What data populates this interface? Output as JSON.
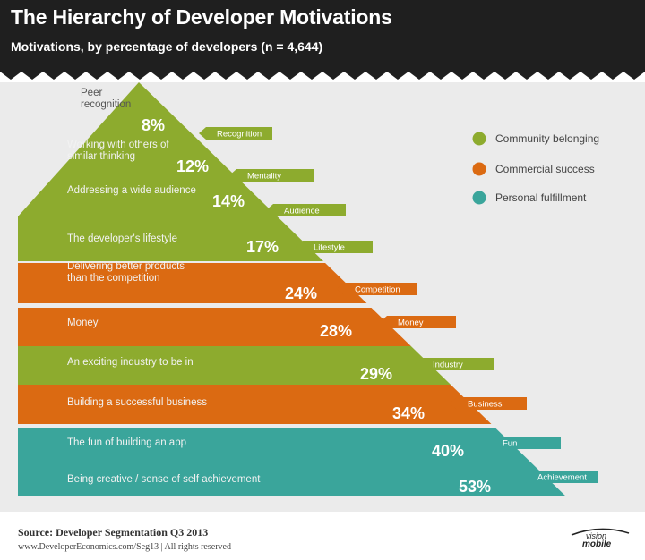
{
  "title": "The Hierarchy of Developer Motivations",
  "subtitle": "Motivations, by percentage of developers (n = 4,644)",
  "chart_data": {
    "type": "bar",
    "style": "pyramid",
    "bands": [
      {
        "label": "Peer\nrecognition",
        "percent_label": "8%",
        "value": 8,
        "tag": "Recognition",
        "group": "Community belonging"
      },
      {
        "label": "Working with others of\nsimilar thinking",
        "percent_label": "12%",
        "value": 12,
        "tag": "Mentality",
        "group": "Community belonging"
      },
      {
        "label": "Addressing a wide audience",
        "percent_label": "14%",
        "value": 14,
        "tag": "Audience",
        "group": "Community belonging"
      },
      {
        "label": "The developer's lifestyle",
        "percent_label": "17%",
        "value": 17,
        "tag": "Lifestyle",
        "group": "Community belonging"
      },
      {
        "label": "Delivering better products\nthan the competition",
        "percent_label": "24%",
        "value": 24,
        "tag": "Competition",
        "group": "Commercial success"
      },
      {
        "label": "Money",
        "percent_label": "28%",
        "value": 28,
        "tag": "Money",
        "group": "Commercial success"
      },
      {
        "label": "An exciting industry to be in",
        "percent_label": "29%",
        "value": 29,
        "tag": "Industry",
        "group": "Community belonging"
      },
      {
        "label": "Building a successful business",
        "percent_label": "34%",
        "value": 34,
        "tag": "Business",
        "group": "Commercial success"
      },
      {
        "label": "The fun of building an app",
        "percent_label": "40%",
        "value": 40,
        "tag": "Fun",
        "group": "Personal fulfillment"
      },
      {
        "label": "Being creative / sense of  self achievement",
        "percent_label": "53%",
        "value": 53,
        "tag": "Achievement",
        "group": "Personal fulfillment"
      }
    ],
    "legend": [
      {
        "name": "Community belonging",
        "color": "#8dab2e"
      },
      {
        "name": "Commercial success",
        "color": "#db6a12"
      },
      {
        "name": "Personal fulfillment",
        "color": "#3aa59b"
      }
    ],
    "legend_position": "top-right"
  },
  "footer": {
    "source": "Source: Developer Segmentation Q3 2013",
    "url": "www.DeveloperEconomics.com/Seg13 | All rights reserved"
  },
  "brand": {
    "top": "vision",
    "bottom": "mobile"
  }
}
